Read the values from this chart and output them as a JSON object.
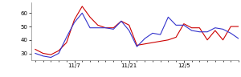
{
  "red_y": [
    33,
    30,
    29,
    32,
    38,
    55,
    65,
    57,
    51,
    49,
    49,
    54,
    51,
    36,
    37,
    38,
    39,
    40,
    42,
    52,
    49,
    49,
    40,
    47,
    40,
    50,
    50
  ],
  "blue_y": [
    30,
    28,
    27,
    30,
    42,
    53,
    60,
    49,
    49,
    49,
    48,
    54,
    47,
    35,
    41,
    45,
    44,
    57,
    51,
    51,
    47,
    46,
    46,
    49,
    48,
    45,
    41
  ],
  "red_color": "#cc0000",
  "blue_color": "#3333cc",
  "ylim": [
    25,
    68
  ],
  "yticks": [
    30,
    40,
    50,
    60
  ],
  "xtick_positions": [
    5,
    12,
    19
  ],
  "xtick_labels": [
    "11/7",
    "11/21",
    "12/5"
  ],
  "background_color": "#ffffff",
  "linewidth": 0.8
}
